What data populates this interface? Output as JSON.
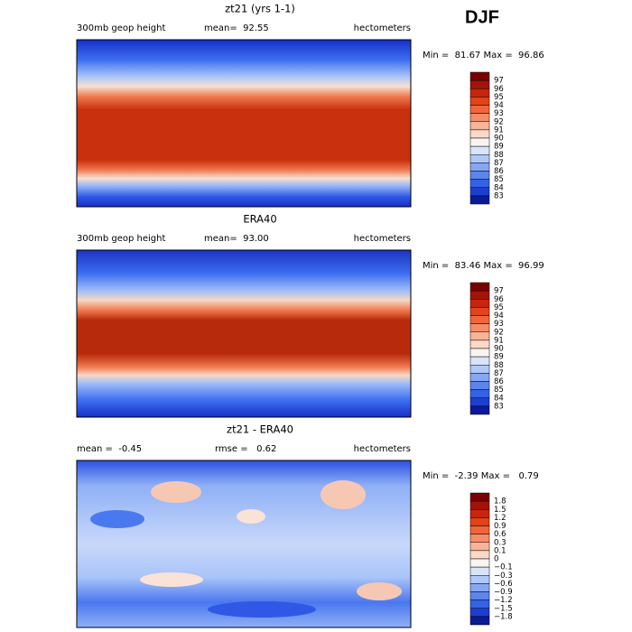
{
  "season": "DJF",
  "panels": [
    {
      "title": "zt21 (yrs 1-1)",
      "left": "300mb geop height",
      "center": "mean=  92.55",
      "right": "hectometers",
      "minmax": "Min =  81.67 Max =  96.86",
      "colorbar": [
        "97",
        "96",
        "95",
        "94",
        "93",
        "92",
        "91",
        "90",
        "89",
        "88",
        "87",
        "86",
        "85",
        "84",
        "83"
      ]
    },
    {
      "title": "ERA40",
      "left": "300mb geop height",
      "center": "mean=  93.00",
      "right": "hectometers",
      "minmax": "Min =  83.46 Max =  96.99",
      "colorbar": [
        "97",
        "96",
        "95",
        "94",
        "93",
        "92",
        "91",
        "90",
        "89",
        "88",
        "87",
        "86",
        "85",
        "84",
        "83"
      ]
    },
    {
      "title": "zt21 - ERA40",
      "left": "mean =  -0.45",
      "center": "rmse =   0.62",
      "right": "hectometers",
      "minmax": "Min =  -2.39 Max =   0.79",
      "colorbar": [
        "1.8",
        "1.5",
        "1.2",
        "0.9",
        "0.6",
        "0.3",
        "0.1",
        "0",
        "−0.1",
        "−0.3",
        "−0.6",
        "−0.9",
        "−1.2",
        "−1.5",
        "−1.8"
      ]
    }
  ]
}
